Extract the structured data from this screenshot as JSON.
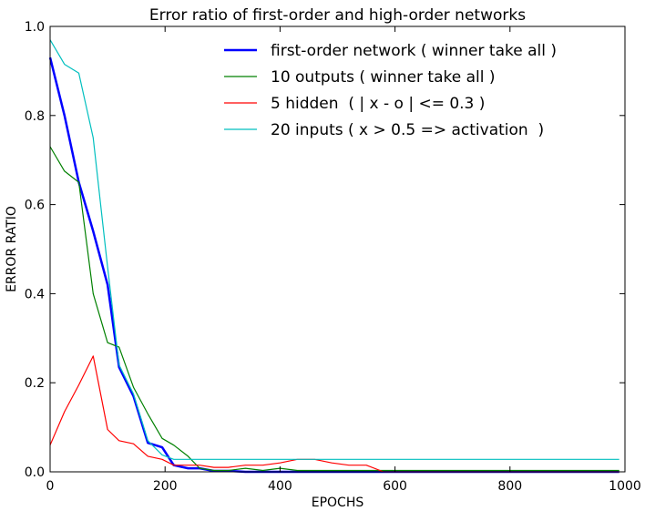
{
  "chart_data": {
    "type": "line",
    "title": "Error ratio of first-order and high-order networks",
    "xlabel": "EPOCHS",
    "ylabel": "ERROR RATIO",
    "xlim": [
      0,
      1000
    ],
    "ylim": [
      0,
      1.0
    ],
    "xticks": [
      "0",
      "200",
      "400",
      "600",
      "800",
      "1000"
    ],
    "yticks": [
      "0.0",
      "0.2",
      "0.4",
      "0.6",
      "0.8",
      "1.0"
    ],
    "grid": false,
    "legend_position": "top-right",
    "series": [
      {
        "name": "first-order network ( winner take all )",
        "color": "#0000ff",
        "width": 2.5,
        "x": [
          0,
          25,
          50,
          75,
          100,
          120,
          145,
          170,
          195,
          215,
          240,
          260,
          285,
          310,
          340,
          370,
          400,
          450,
          500,
          550,
          600,
          650,
          700,
          750,
          800,
          850,
          900,
          950,
          990
        ],
        "y": [
          0.93,
          0.8,
          0.65,
          0.54,
          0.42,
          0.235,
          0.17,
          0.065,
          0.055,
          0.015,
          0.008,
          0.008,
          0.002,
          0.002,
          0.0,
          0.0,
          0.0,
          0.0,
          0.0,
          0.0,
          0.0,
          0.0,
          0.0,
          0.0,
          0.0,
          0.0,
          0.0,
          0.0,
          0.0
        ]
      },
      {
        "name": "10 outputs ( winner take all )",
        "color": "#008000",
        "width": 1.2,
        "x": [
          0,
          25,
          50,
          75,
          100,
          120,
          145,
          170,
          195,
          215,
          240,
          260,
          285,
          310,
          340,
          370,
          400,
          430,
          460,
          500,
          550,
          600,
          650,
          700,
          750,
          800,
          850,
          900,
          950,
          990
        ],
        "y": [
          0.73,
          0.675,
          0.65,
          0.4,
          0.29,
          0.28,
          0.19,
          0.13,
          0.075,
          0.06,
          0.035,
          0.008,
          0.003,
          0.003,
          0.008,
          0.003,
          0.008,
          0.003,
          0.003,
          0.003,
          0.003,
          0.003,
          0.003,
          0.003,
          0.003,
          0.003,
          0.003,
          0.003,
          0.003,
          0.003
        ]
      },
      {
        "name": "5 hidden  ( | x - o | <= 0.3 )",
        "color": "#ff0000",
        "width": 1.2,
        "x": [
          0,
          25,
          50,
          75,
          100,
          120,
          145,
          170,
          195,
          215,
          240,
          260,
          285,
          310,
          340,
          370,
          400,
          430,
          460,
          490,
          520,
          550,
          580,
          620,
          700,
          800,
          900,
          990
        ],
        "y": [
          0.06,
          0.135,
          0.195,
          0.26,
          0.095,
          0.07,
          0.063,
          0.035,
          0.028,
          0.015,
          0.015,
          0.015,
          0.01,
          0.01,
          0.015,
          0.015,
          0.02,
          0.028,
          0.028,
          0.02,
          0.015,
          0.015,
          0.0,
          0.0,
          0.0,
          0.0,
          0.0,
          0.0
        ]
      },
      {
        "name": "20 inputs ( x > 0.5 => activation  )",
        "color": "#00bfbf",
        "width": 1.2,
        "x": [
          0,
          25,
          50,
          75,
          100,
          120,
          145,
          170,
          195,
          215,
          240,
          260,
          285,
          310,
          340,
          370,
          400,
          450,
          500,
          600,
          700,
          800,
          900,
          990
        ],
        "y": [
          0.97,
          0.915,
          0.895,
          0.75,
          0.46,
          0.24,
          0.175,
          0.07,
          0.038,
          0.028,
          0.028,
          0.028,
          0.028,
          0.028,
          0.028,
          0.028,
          0.028,
          0.028,
          0.028,
          0.028,
          0.028,
          0.028,
          0.028,
          0.028
        ]
      }
    ]
  }
}
